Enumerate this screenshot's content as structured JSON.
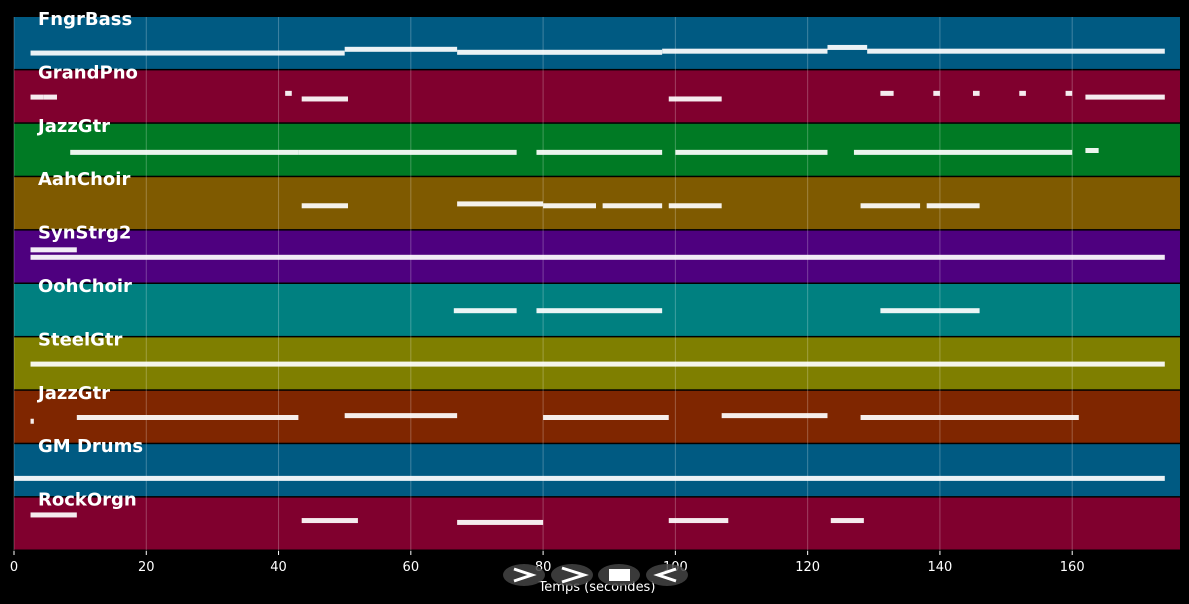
{
  "chart_data": {
    "type": "pianoroll",
    "x_label": "Temps (secondes)",
    "xlim": [
      0,
      176.3
    ],
    "xticks": [
      0,
      20,
      40,
      60,
      80,
      100,
      120,
      140,
      160
    ],
    "grid": true,
    "tracks": [
      {
        "name": "FngrBass",
        "color": "#005a82",
        "notes": [
          [
            2.5,
            50,
            0.25
          ],
          [
            50,
            67,
            0.35
          ],
          [
            67,
            98,
            0.27
          ],
          [
            98,
            123,
            0.3
          ],
          [
            123,
            129,
            0.4
          ],
          [
            129,
            174,
            0.3
          ]
        ]
      },
      {
        "name": "GrandPno",
        "color": "#80002e",
        "notes": [
          [
            2.5,
            4.5,
            0.5
          ],
          [
            4.5,
            6.5,
            0.5
          ],
          [
            41,
            42,
            0.6
          ],
          [
            43.5,
            50.5,
            0.45
          ],
          [
            99,
            107,
            0.45
          ],
          [
            131,
            133,
            0.6
          ],
          [
            139,
            140,
            0.6
          ],
          [
            145,
            146,
            0.6
          ],
          [
            152,
            153,
            0.6
          ],
          [
            159,
            160,
            0.6
          ],
          [
            162,
            174,
            0.5
          ]
        ]
      },
      {
        "name": "JazzGtr",
        "color": "#007a24",
        "notes": [
          [
            8.5,
            43,
            0.45
          ],
          [
            43,
            76,
            0.45
          ],
          [
            79,
            98,
            0.45
          ],
          [
            100,
            123,
            0.45
          ],
          [
            127,
            160,
            0.45
          ],
          [
            162,
            164,
            0.5
          ]
        ]
      },
      {
        "name": "AahChoir",
        "color": "#7f5a00",
        "notes": [
          [
            43.5,
            50.5,
            0.45
          ],
          [
            67,
            80,
            0.5
          ],
          [
            80,
            88,
            0.45
          ],
          [
            89,
            98,
            0.45
          ],
          [
            99,
            107,
            0.45
          ],
          [
            128,
            137,
            0.45
          ],
          [
            138,
            146,
            0.45
          ]
        ]
      },
      {
        "name": "SynStrg2",
        "color": "#4e007f",
        "notes": [
          [
            2.5,
            174,
            0.5
          ],
          [
            2.5,
            9.5,
            0.7
          ]
        ]
      },
      {
        "name": "OohChoir",
        "color": "#008080",
        "notes": [
          [
            66.5,
            76,
            0.5
          ],
          [
            79,
            98,
            0.5
          ],
          [
            131,
            146,
            0.5
          ]
        ]
      },
      {
        "name": "SteelGtr",
        "color": "#7f7f00",
        "notes": [
          [
            2.5,
            174,
            0.5
          ]
        ]
      },
      {
        "name": "JazzGtr",
        "color": "#7f2600",
        "notes": [
          [
            2.5,
            3,
            0.4
          ],
          [
            9.5,
            43,
            0.5
          ],
          [
            50,
            67,
            0.55
          ],
          [
            80,
            99,
            0.5
          ],
          [
            107,
            123,
            0.55
          ],
          [
            128,
            161,
            0.5
          ]
        ]
      },
      {
        "name": "GM Drums",
        "color": "#005a82",
        "notes": [
          [
            0,
            174,
            0.3
          ]
        ]
      },
      {
        "name": "RockOrgn",
        "color": "#80002e",
        "notes": [
          [
            2.5,
            9.5,
            0.75
          ],
          [
            43.5,
            52,
            0.6
          ],
          [
            67,
            80,
            0.55
          ],
          [
            99,
            108,
            0.6
          ],
          [
            123.5,
            128.5,
            0.6
          ]
        ]
      }
    ]
  }
}
